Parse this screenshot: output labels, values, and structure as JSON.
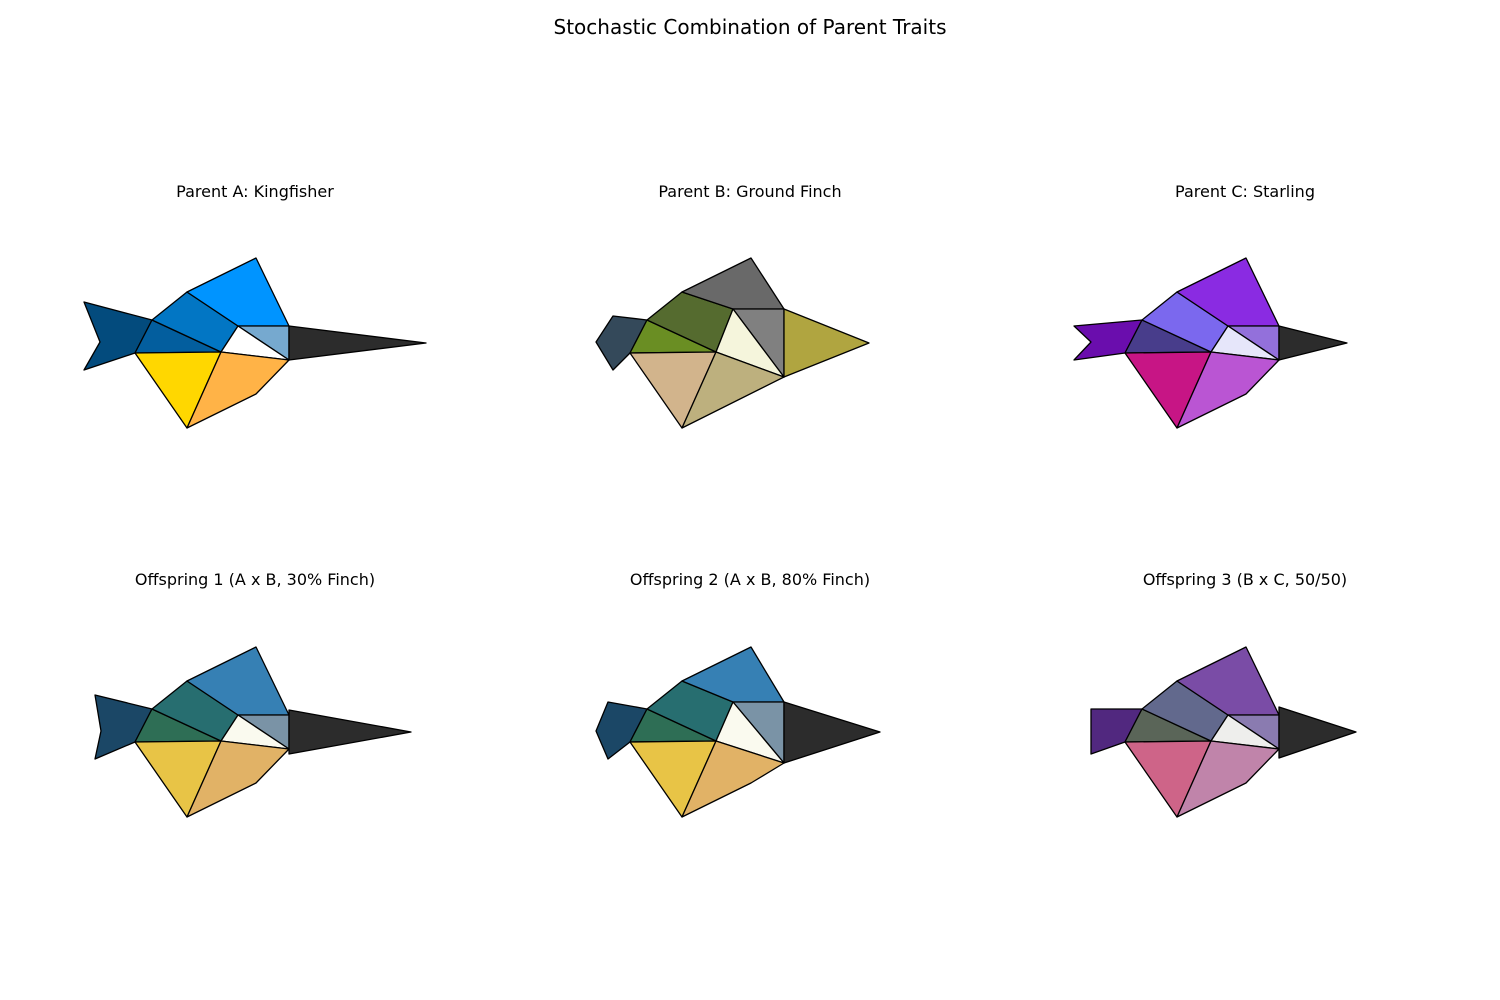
{
  "title": "Stochastic Combination of Parent Traits",
  "panels": [
    {
      "title": "Parent A: Kingfisher",
      "colors": {
        "tail": "#034B7D",
        "belly_front": "#035E9E",
        "back": "#0276C4",
        "wing": "#0094FF",
        "cheek": "#FFFFFF",
        "crown": "#76A9CF",
        "breast": "#FFD700",
        "flank": "#FFB347",
        "beak": "#2C2C2C"
      }
    },
    {
      "title": "Parent B: Ground Finch",
      "colors": {
        "tail": "#34495A",
        "belly_front": "#6A8E23",
        "back": "#556B2F",
        "wing": "#696969",
        "cheek": "#F5F5DC",
        "crown": "#808080",
        "breast": "#D2B48C",
        "flank": "#BDB07E",
        "beak": "#B0A540"
      }
    },
    {
      "title": "Parent C: Starling",
      "colors": {
        "tail": "#6A0DAD",
        "belly_front": "#483D8B",
        "back": "#7B68EE",
        "wing": "#8A2BE2",
        "cheek": "#E6E6FA",
        "crown": "#9370DB",
        "breast": "#C71585",
        "flank": "#BA55D3",
        "beak": "#2C2C2C"
      }
    },
    {
      "title": "Offspring 1 (A x B, 30% Finch)",
      "colors": {
        "tail": "#1B4766",
        "belly_front": "#2E6E55",
        "back": "#276E70",
        "wing": "#3680B4",
        "cheek": "#FAFAEF",
        "crown": "#7A93A6",
        "breast": "#E8C446",
        "flank": "#E1B266",
        "beak": "#2C2C2C"
      }
    },
    {
      "title": "Offspring 2 (A x B, 80% Finch)",
      "colors": {
        "tail": "#1B4766",
        "belly_front": "#2E6E55",
        "back": "#276E70",
        "wing": "#3680B4",
        "cheek": "#FAFAEF",
        "crown": "#7A93A6",
        "breast": "#E8C446",
        "flank": "#E1B266",
        "beak": "#2C2C2C"
      }
    },
    {
      "title": "Offspring 3 (B x C, 50/50)",
      "colors": {
        "tail": "#51287F",
        "belly_front": "#5A6558",
        "back": "#62698D",
        "wing": "#7A4CA6",
        "cheek": "#EEEEEC",
        "crown": "#8A7BB0",
        "breast": "#CE6488",
        "flank": "#C084AA",
        "beak": "#2C2C2C"
      }
    }
  ]
}
